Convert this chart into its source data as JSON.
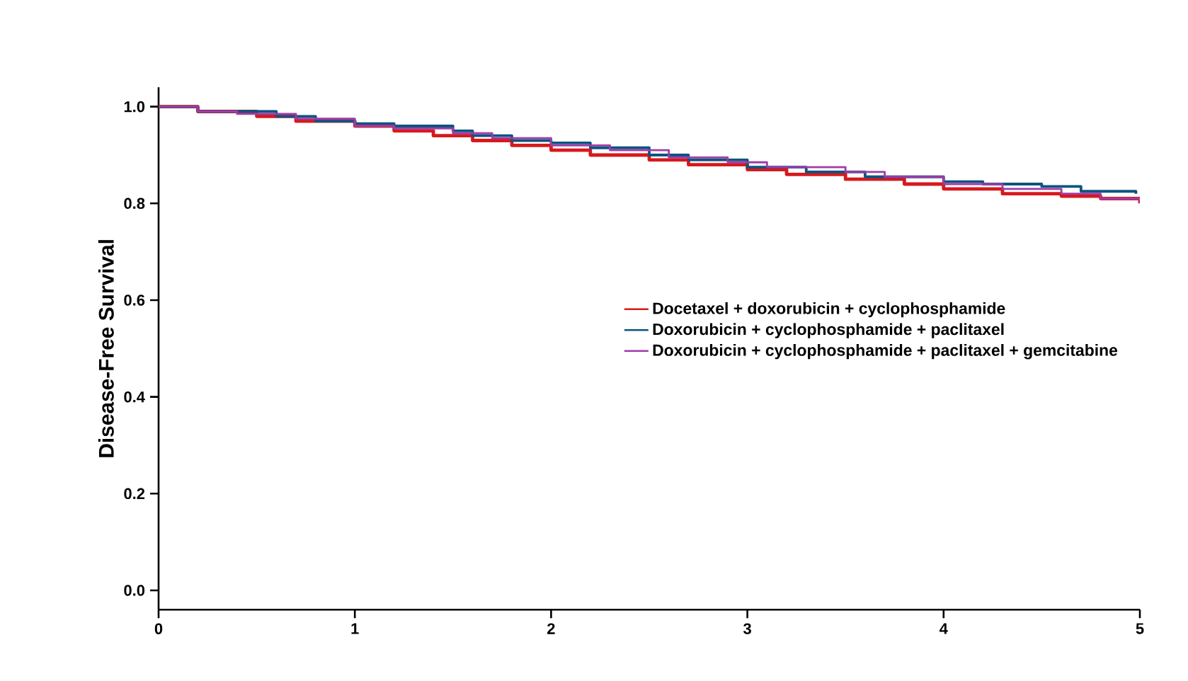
{
  "chart_data": {
    "type": "step",
    "ylabel": "Disease-Free Survival",
    "xlim": [
      0,
      5
    ],
    "ylim": [
      -0.04,
      1.04
    ],
    "xticks": [
      0,
      1,
      2,
      3,
      4,
      5
    ],
    "yticks": [
      {
        "value": 0,
        "label": "0.0"
      },
      {
        "value": 0.2,
        "label": "0.2"
      },
      {
        "value": 0.4,
        "label": "0.4"
      },
      {
        "value": 0.6,
        "label": "0.6"
      },
      {
        "value": 0.8,
        "label": "0.8"
      },
      {
        "value": 1,
        "label": "1.0"
      }
    ],
    "legend": "right",
    "grid": false,
    "marker": "none",
    "line_style": "solid",
    "series": [
      {
        "name": "Docetaxel + doxorubicin + cyclophosphamide",
        "color": "#d7191c",
        "x": [
          0,
          0.2,
          0.5,
          0.7,
          1,
          1.2,
          1.4,
          1.6,
          1.8,
          2,
          2.2,
          2.5,
          2.7,
          3,
          3.2,
          3.5,
          3.8,
          4,
          4.3,
          4.6,
          4.8,
          5
        ],
        "values": [
          1.0,
          0.99,
          0.98,
          0.97,
          0.96,
          0.95,
          0.94,
          0.93,
          0.92,
          0.91,
          0.9,
          0.89,
          0.88,
          0.87,
          0.86,
          0.85,
          0.84,
          0.83,
          0.82,
          0.815,
          0.81,
          0.8
        ]
      },
      {
        "name": "Doxorubicin + cyclophosphamide + paclitaxel",
        "color": "#0f5480",
        "x": [
          0,
          0.2,
          0.6,
          0.8,
          1,
          1.2,
          1.5,
          1.6,
          1.8,
          2,
          2.2,
          2.5,
          2.7,
          3,
          3.3,
          3.6,
          4,
          4.2,
          4.5,
          4.7,
          4.98
        ],
        "values": [
          1.0,
          0.99,
          0.98,
          0.97,
          0.965,
          0.96,
          0.95,
          0.94,
          0.93,
          0.925,
          0.915,
          0.9,
          0.89,
          0.875,
          0.865,
          0.855,
          0.845,
          0.84,
          0.835,
          0.825,
          0.82
        ]
      },
      {
        "name": "Doxorubicin + cyclophosphamide + paclitaxel + gemcitabine",
        "color": "#a03ca8",
        "x": [
          0,
          0.2,
          0.4,
          0.7,
          1,
          1.2,
          1.5,
          1.7,
          2,
          2.3,
          2.6,
          2.9,
          3.1,
          3.5,
          3.7,
          4,
          4.3,
          4.6,
          4.8,
          5
        ],
        "values": [
          1.0,
          0.99,
          0.985,
          0.975,
          0.96,
          0.955,
          0.945,
          0.935,
          0.92,
          0.91,
          0.895,
          0.885,
          0.875,
          0.865,
          0.855,
          0.84,
          0.83,
          0.82,
          0.81,
          0.805
        ]
      }
    ]
  }
}
